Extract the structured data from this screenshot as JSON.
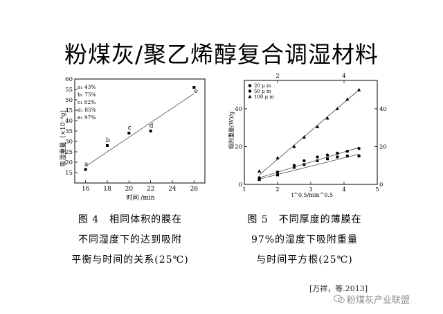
{
  "slide": {
    "title": "粉煤灰/聚乙烯醇复合调湿材料",
    "citation": "[万祥，等.2013]",
    "watermark": "粉煤灰产业联盟",
    "watermark_icon": "wechat-icon"
  },
  "captions": {
    "fig4": [
      "图 4　相同体积的膜在",
      "不同湿度下的达到吸附",
      "平衡与时间的关系(25℃)"
    ],
    "fig5": [
      "图 5　不同厚度的薄膜在",
      "97%的湿度下吸附重量",
      "与时间平方根(25℃)"
    ]
  },
  "chart_data": [
    {
      "type": "scatter",
      "xlabel": "时间 /min",
      "ylabel": "吸湿重量（×10⁻²g）",
      "xlim": [
        15,
        27
      ],
      "ylim": [
        10,
        60
      ],
      "xticks": [
        16,
        18,
        20,
        22,
        24,
        26
      ],
      "yticks": [
        15,
        20,
        25,
        30,
        35,
        40,
        45,
        50,
        55,
        60
      ],
      "grid": false,
      "legend_position": "top-left",
      "legend": [
        "a₁ 43%",
        "b₁ 75%",
        "c₁ 82%",
        "d₁ 85%",
        "e₁ 97%"
      ],
      "points": [
        {
          "label": "a",
          "x": 16,
          "y": 16.5
        },
        {
          "label": "b",
          "x": 18,
          "y": 28
        },
        {
          "label": "c",
          "x": 20,
          "y": 34
        },
        {
          "label": "d",
          "x": 22,
          "y": 35
        },
        {
          "label": "e",
          "x": 26,
          "y": 56
        }
      ],
      "fit_line": {
        "x": [
          16,
          26
        ],
        "y": [
          18,
          53
        ]
      }
    },
    {
      "type": "scatter",
      "xlabel": "t^0.5/min^0.5",
      "ylabel": "吸附重量(W)/g",
      "xlim": [
        1,
        5
      ],
      "ylim": [
        0,
        55
      ],
      "xticks": [
        1,
        2,
        3,
        4,
        5
      ],
      "x_top_ticks": [
        2,
        4
      ],
      "yticks": [
        0,
        20,
        40
      ],
      "y_right_ticks": [
        0,
        20,
        40
      ],
      "grid": false,
      "legend_position": "top-left",
      "series": [
        {
          "name": "20 μ m",
          "marker": "square",
          "x": [
            1.45,
            2,
            2.5,
            2.8,
            3.2,
            3.5,
            3.8,
            4.1,
            4.45
          ],
          "y": [
            2.5,
            5,
            9,
            10.5,
            12.5,
            13.5,
            14.5,
            15,
            15
          ],
          "fit": [
            [
              1.45,
              2.8
            ],
            [
              4.45,
              16
            ]
          ]
        },
        {
          "name": "50 μ m",
          "marker": "circle",
          "x": [
            1.45,
            2,
            2.5,
            2.8,
            3.2,
            3.5,
            3.8,
            4.1,
            4.45
          ],
          "y": [
            3.5,
            6.5,
            10,
            12.5,
            14.5,
            15.5,
            16.5,
            17.5,
            19
          ],
          "fit": [
            [
              1.45,
              3.5
            ],
            [
              4.45,
              19.5
            ]
          ]
        },
        {
          "name": "100 μ m",
          "marker": "triangle",
          "x": [
            1.45,
            2,
            2.5,
            2.8,
            3.2,
            3.5,
            3.8,
            4.1,
            4.45
          ],
          "y": [
            7,
            14,
            20,
            25,
            30.5,
            35,
            40,
            45,
            50
          ],
          "fit": [
            [
              1.45,
              5
            ],
            [
              4.45,
              50
            ]
          ]
        }
      ]
    }
  ]
}
